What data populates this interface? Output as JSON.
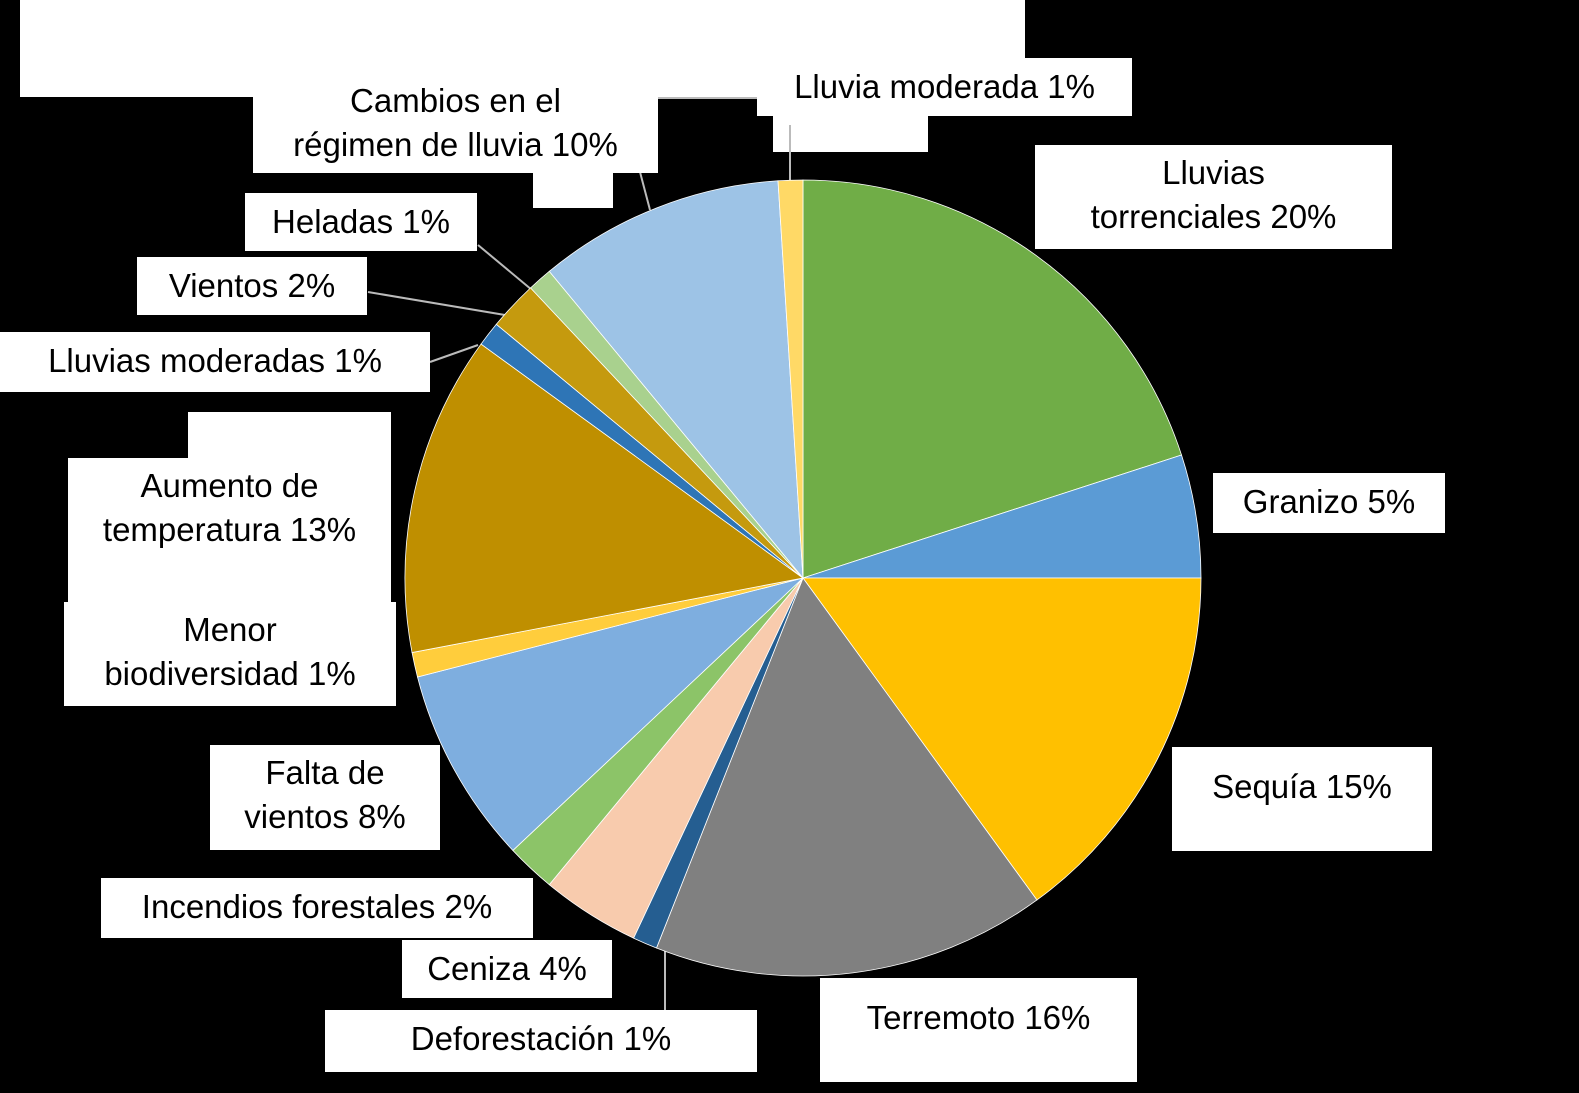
{
  "chart_data": {
    "type": "pie",
    "categories": [
      "Lluvias torrenciales",
      "Granizo",
      "Sequía",
      "Terremoto",
      "Deforestación",
      "Ceniza",
      "Incendios forestales",
      "Falta de vientos",
      "Menor biodiversidad",
      "Aumento de temperatura",
      "Lluvias moderadas",
      "Vientos",
      "Heladas",
      "Cambios en el régimen de lluvia",
      "Lluvia moderada"
    ],
    "values": [
      20,
      5,
      15,
      16,
      1,
      4,
      2,
      8,
      1,
      13,
      1,
      2,
      1,
      10,
      1
    ],
    "value_labels": [
      "20%",
      "5%",
      "15%",
      "16%",
      "1%",
      "4%",
      "2%",
      "8%",
      "1%",
      "13%",
      "1%",
      "2%",
      "1%",
      "10%",
      "1%"
    ],
    "colors": [
      "#70ad47",
      "#5b9bd5",
      "#ffc000",
      "#808080",
      "#255e91",
      "#f8cbad",
      "#8cc468",
      "#7eaedf",
      "#ffcd3c",
      "#bf8f00",
      "#2e75b6",
      "#c59a0e",
      "#a9d18e",
      "#9dc3e6",
      "#ffd966"
    ]
  }
}
